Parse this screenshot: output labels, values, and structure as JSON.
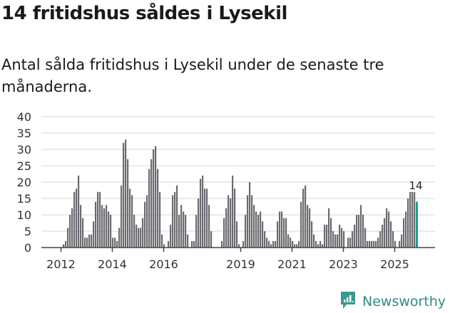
{
  "title": "14 fritidshus såldes i Lysekil",
  "subtitle": "Antal sålda fritidshus i Lysekil under de senaste tre månaderna.",
  "brand": {
    "name": "Newsworthy",
    "icon": "bar-chart-speech-bubble-icon",
    "color": "#3a9a8f"
  },
  "colors": {
    "bar": "#6b6a70",
    "highlight": "#1a9e94",
    "grid": "#dddddd",
    "axis": "#444444",
    "text": "#333333"
  },
  "chart_data": {
    "type": "bar",
    "title": "14 fritidshus såldes i Lysekil",
    "subtitle": "Antal sålda fritidshus i Lysekil under de senaste tre månaderna.",
    "xlabel": "",
    "ylabel": "",
    "ylim": [
      0,
      40
    ],
    "yticks": [
      0,
      5,
      10,
      15,
      20,
      25,
      30,
      35,
      40
    ],
    "grid": true,
    "legend": null,
    "x_tick_labels": [
      "2012",
      "2014",
      "2016",
      "2019",
      "2021",
      "2023",
      "2025"
    ],
    "x_tick_month_index": [
      0,
      24,
      48,
      84,
      108,
      132,
      156
    ],
    "frequency": "monthly (rolling 3-month totals)",
    "start": "2012-01",
    "values": [
      0,
      1,
      2,
      6,
      10,
      12,
      17,
      18,
      22,
      13,
      9,
      3,
      3,
      4,
      4,
      8,
      14,
      17,
      17,
      13,
      12,
      13,
      11,
      10,
      3,
      3,
      2,
      6,
      19,
      32,
      33,
      27,
      18,
      16,
      10,
      7,
      6,
      6,
      9,
      14,
      16,
      24,
      27,
      30,
      31,
      24,
      17,
      4,
      1,
      0,
      2,
      7,
      16,
      17,
      19,
      10,
      13,
      11,
      10,
      4,
      0,
      2,
      2,
      10,
      15,
      21,
      22,
      18,
      18,
      13,
      5,
      0,
      0,
      0,
      0,
      2,
      9,
      12,
      16,
      15,
      22,
      18,
      8,
      1,
      0,
      2,
      10,
      16,
      20,
      16,
      13,
      11,
      10,
      11,
      8,
      5,
      3,
      2,
      1,
      2,
      2,
      8,
      11,
      11,
      9,
      9,
      4,
      3,
      2,
      1,
      1,
      2,
      14,
      18,
      19,
      13,
      12,
      8,
      4,
      2,
      1,
      2,
      1,
      7,
      7,
      12,
      9,
      5,
      4,
      4,
      7,
      6,
      5,
      0,
      3,
      3,
      5,
      7,
      10,
      10,
      13,
      10,
      6,
      2,
      2,
      2,
      2,
      2,
      3,
      5,
      7,
      9,
      12,
      11,
      8,
      5,
      2,
      0,
      2,
      4,
      9,
      11,
      15,
      17,
      17,
      17,
      14
    ],
    "highlight_last": true,
    "annotations": [
      {
        "label": "14",
        "target": "last bar"
      }
    ]
  }
}
